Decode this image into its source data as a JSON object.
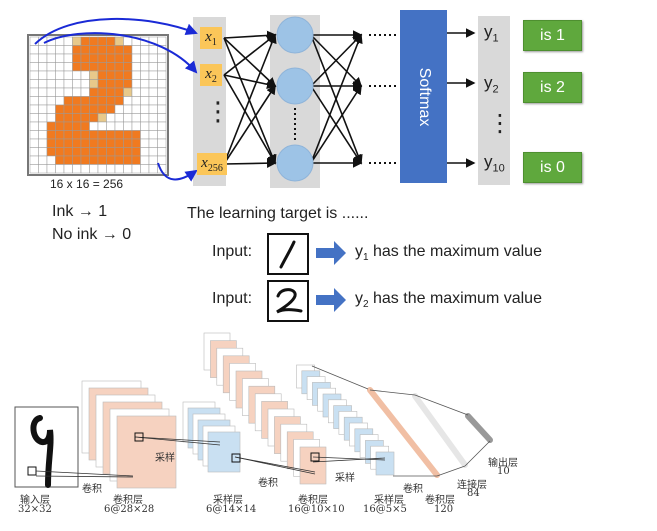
{
  "grid": {
    "caption": "16 x 16 = 256",
    "ink_label": "Ink → 1",
    "noink_label": "No ink → 0"
  },
  "inputs": {
    "x1": "x",
    "x1_sub": "1",
    "x2": "x",
    "x2_sub": "2",
    "x256": "x",
    "x256_sub": "256",
    "dots": "⋮"
  },
  "softmax_label": "Softmax",
  "outputs": [
    {
      "y": "y",
      "sub": "1",
      "label": "is 1"
    },
    {
      "y": "y",
      "sub": "2",
      "label": "is 2"
    },
    {
      "y": "y",
      "sub": "10",
      "label": "is 0"
    }
  ],
  "target": {
    "heading": "The learning target is ......",
    "rows": [
      {
        "input_label": "Input:",
        "digit": "1",
        "y": "y",
        "sub": "1",
        "text": " has the maximum value"
      },
      {
        "input_label": "Input:",
        "digit": "2",
        "y": "y",
        "sub": "2",
        "text": " has the maximum value"
      }
    ]
  },
  "colors": {
    "ink": "#f07a20",
    "partial_ink": "#e8c98a",
    "softmax": "#4472c4",
    "output_box": "#5fa83d",
    "input_node": "#fbc659",
    "hidden_node": "#9dc3e6",
    "arrow": "#4472c4"
  },
  "lenet": {
    "input": {
      "name": "输入层",
      "size": "32×32"
    },
    "conv1": {
      "op": "卷积",
      "name": "卷积层",
      "size": "6@28×28"
    },
    "pool1": {
      "op": "采样",
      "name": "采样层",
      "size": "6@14×14"
    },
    "conv2": {
      "op": "卷积",
      "name": "卷积层",
      "size": "16@10×10"
    },
    "pool2": {
      "op": "采样",
      "name": "采样层",
      "size": "16@5×5"
    },
    "conv3": {
      "op": "卷积",
      "name": "卷积层",
      "size": "120"
    },
    "fc": {
      "name": "连接层",
      "size": "84"
    },
    "output": {
      "name": "输出层",
      "size": "10"
    }
  }
}
